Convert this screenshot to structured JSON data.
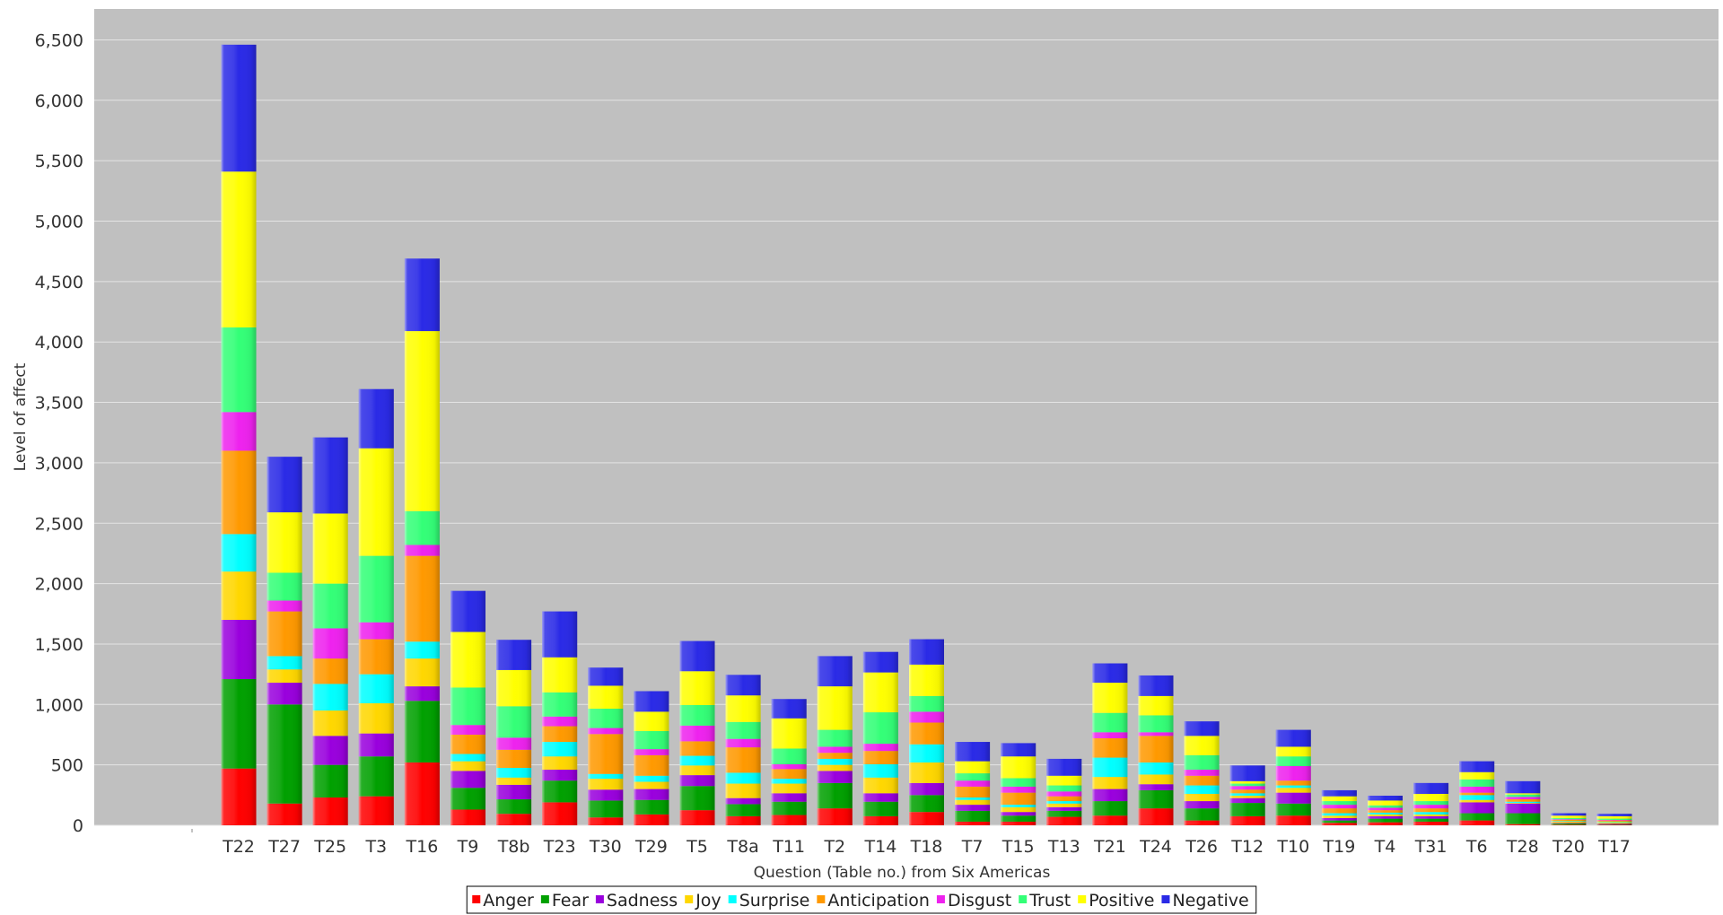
{
  "chart_data": {
    "type": "bar",
    "stacked": true,
    "xlabel": "Question (Table no.) from Six Americas",
    "ylabel": "Level of affect",
    "ylim": [
      0,
      6750
    ],
    "yticks": [
      0,
      500,
      1000,
      1500,
      2000,
      2500,
      3000,
      3500,
      4000,
      4500,
      5000,
      5500,
      6000,
      6500
    ],
    "ytick_labels": [
      "0",
      "500",
      "1,000",
      "1,500",
      "2,000",
      "2,500",
      "3,000",
      "3,500",
      "4,000",
      "4,500",
      "5,000",
      "5,500",
      "6,000",
      "6,500"
    ],
    "grid": true,
    "legend_position": "bottom",
    "colors": {
      "plot_background": "#c0c0c0",
      "gridline": "#e4e4e4"
    },
    "categories": [
      "T22",
      "T27",
      "T25",
      "T3",
      "T16",
      "T9",
      "T8b",
      "T23",
      "T30",
      "T29",
      "T5",
      "T8a",
      "T11",
      "T2",
      "T14",
      "T18",
      "T7",
      "T15",
      "T13",
      "T21",
      "T24",
      "T26",
      "T12",
      "T10",
      "T19",
      "T4",
      "T31",
      "T6",
      "T28",
      "T20",
      "T17"
    ],
    "series": [
      {
        "name": "Anger",
        "color": "#ff0000",
        "values": [
          470,
          180,
          230,
          240,
          520,
          130,
          95,
          190,
          65,
          90,
          125,
          75,
          85,
          140,
          75,
          110,
          30,
          30,
          70,
          80,
          140,
          40,
          75,
          80,
          20,
          25,
          30,
          40,
          10,
          5,
          5
        ]
      },
      {
        "name": "Fear",
        "color": "#00a000",
        "values": [
          740,
          820,
          270,
          330,
          510,
          180,
          120,
          180,
          140,
          120,
          200,
          100,
          110,
          210,
          120,
          140,
          90,
          50,
          50,
          120,
          150,
          100,
          110,
          100,
          20,
          30,
          25,
          60,
          90,
          10,
          5
        ]
      },
      {
        "name": "Sadness",
        "color": "#9900dd",
        "values": [
          490,
          180,
          240,
          190,
          120,
          140,
          120,
          90,
          90,
          90,
          90,
          50,
          70,
          100,
          70,
          100,
          50,
          30,
          30,
          100,
          50,
          60,
          40,
          90,
          20,
          20,
          20,
          90,
          80,
          5,
          5
        ]
      },
      {
        "name": "Joy",
        "color": "#ffd700",
        "values": [
          400,
          110,
          210,
          250,
          230,
          80,
          60,
          110,
          90,
          60,
          80,
          120,
          80,
          50,
          130,
          170,
          40,
          40,
          30,
          100,
          80,
          60,
          20,
          40,
          20,
          15,
          15,
          20,
          5,
          10,
          10
        ]
      },
      {
        "name": "Surprise",
        "color": "#00ffff",
        "values": [
          310,
          110,
          220,
          240,
          140,
          60,
          80,
          120,
          40,
          50,
          80,
          90,
          40,
          50,
          110,
          150,
          20,
          20,
          20,
          160,
          100,
          70,
          20,
          20,
          20,
          15,
          20,
          40,
          10,
          5,
          5
        ]
      },
      {
        "name": "Anticipation",
        "color": "#ff9900",
        "values": [
          690,
          370,
          210,
          290,
          710,
          160,
          150,
          130,
          330,
          170,
          120,
          210,
          80,
          50,
          110,
          180,
          90,
          100,
          40,
          160,
          220,
          80,
          30,
          40,
          40,
          20,
          30,
          20,
          20,
          10,
          10
        ]
      },
      {
        "name": "Disgust",
        "color": "#ee22ee",
        "values": [
          320,
          90,
          250,
          140,
          90,
          80,
          100,
          80,
          50,
          50,
          130,
          70,
          40,
          50,
          60,
          90,
          50,
          50,
          40,
          50,
          30,
          50,
          30,
          120,
          30,
          20,
          30,
          50,
          20,
          5,
          5
        ]
      },
      {
        "name": "Trust",
        "color": "#33ff77",
        "values": [
          700,
          230,
          370,
          550,
          280,
          310,
          260,
          200,
          160,
          150,
          170,
          140,
          130,
          140,
          260,
          130,
          60,
          70,
          50,
          160,
          140,
          120,
          20,
          80,
          30,
          20,
          30,
          60,
          20,
          10,
          10
        ]
      },
      {
        "name": "Positive",
        "color": "#ffff00",
        "values": [
          1290,
          500,
          580,
          890,
          1490,
          460,
          300,
          290,
          190,
          160,
          280,
          220,
          250,
          360,
          330,
          260,
          100,
          180,
          80,
          250,
          160,
          160,
          20,
          80,
          40,
          40,
          60,
          60,
          10,
          20,
          20
        ]
      },
      {
        "name": "Negative",
        "color": "#2a2ae6",
        "values": [
          1050,
          460,
          630,
          490,
          600,
          340,
          250,
          380,
          150,
          170,
          250,
          170,
          160,
          250,
          170,
          210,
          160,
          110,
          140,
          160,
          170,
          120,
          130,
          140,
          50,
          40,
          90,
          90,
          100,
          20,
          20
        ]
      }
    ]
  }
}
